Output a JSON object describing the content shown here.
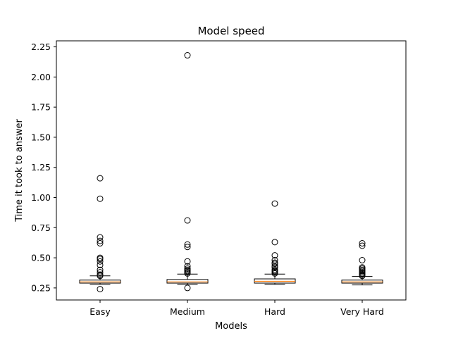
{
  "chart_data": {
    "type": "boxplot",
    "title": "Model speed",
    "xlabel": "Models",
    "ylabel": "Time it took to answer",
    "ylim": [
      0.15,
      2.3
    ],
    "yticks": [
      0.25,
      0.5,
      0.75,
      1.0,
      1.25,
      1.5,
      1.75,
      2.0,
      2.25
    ],
    "ytick_labels": [
      "0.25",
      "0.50",
      "0.75",
      "1.00",
      "1.25",
      "1.50",
      "1.75",
      "2.00",
      "2.25"
    ],
    "grid": false,
    "colors": {
      "box": "#000000",
      "median": "#ff7f0e",
      "flier": "#000000"
    },
    "categories": [
      "Easy",
      "Medium",
      "Hard",
      "Very Hard"
    ],
    "boxes": [
      {
        "name": "Easy",
        "whisker_low": 0.28,
        "q1": 0.29,
        "median": 0.3,
        "q3": 0.315,
        "whisker_high": 0.35,
        "fliers": [
          1.16,
          0.99,
          0.67,
          0.64,
          0.62,
          0.5,
          0.49,
          0.47,
          0.44,
          0.4,
          0.38,
          0.36,
          0.35,
          0.24
        ]
      },
      {
        "name": "Medium",
        "whisker_low": 0.28,
        "q1": 0.29,
        "median": 0.3,
        "q3": 0.32,
        "whisker_high": 0.365,
        "fliers": [
          2.18,
          0.81,
          0.61,
          0.59,
          0.47,
          0.43,
          0.41,
          0.4,
          0.39,
          0.38,
          0.37,
          0.25
        ]
      },
      {
        "name": "Hard",
        "whisker_low": 0.28,
        "q1": 0.29,
        "median": 0.305,
        "q3": 0.325,
        "whisker_high": 0.365,
        "fliers": [
          0.95,
          0.63,
          0.52,
          0.48,
          0.46,
          0.45,
          0.43,
          0.42,
          0.4,
          0.39,
          0.38,
          0.37
        ]
      },
      {
        "name": "Very Hard",
        "whisker_low": 0.275,
        "q1": 0.29,
        "median": 0.3,
        "q3": 0.315,
        "whisker_high": 0.345,
        "fliers": [
          0.62,
          0.6,
          0.48,
          0.42,
          0.41,
          0.4,
          0.39,
          0.38,
          0.37,
          0.36,
          0.35
        ]
      }
    ]
  }
}
